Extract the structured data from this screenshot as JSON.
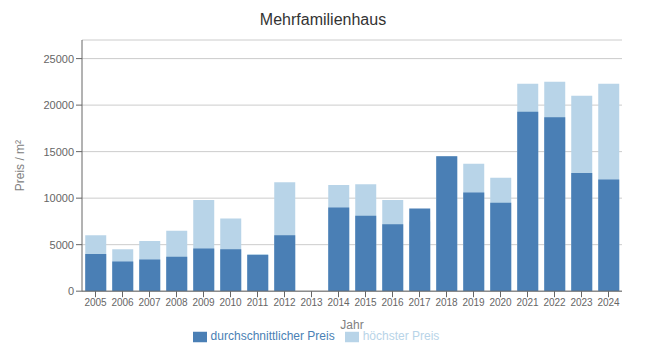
{
  "chart_data": {
    "type": "bar",
    "title": "Mehrfamilienhaus",
    "xlabel": "Jahr",
    "ylabel": "Preis / m²",
    "categories": [
      "2005",
      "2006",
      "2007",
      "2008",
      "2009",
      "2010",
      "2011",
      "2012",
      "2013",
      "2014",
      "2015",
      "2016",
      "2017",
      "2018",
      "2019",
      "2020",
      "2021",
      "2022",
      "2023",
      "2024"
    ],
    "series": [
      {
        "name": "höchster Preis",
        "color": "#b8d4e8",
        "values": [
          6000,
          4500,
          5400,
          6500,
          9800,
          7800,
          4000,
          11700,
          0,
          11400,
          11500,
          9800,
          7500,
          14500,
          13700,
          12200,
          22300,
          22500,
          21000,
          22300
        ]
      },
      {
        "name": "durchschnittlicher Preis",
        "color": "#4a7fb5",
        "values": [
          4000,
          3200,
          3400,
          3700,
          4600,
          4500,
          3900,
          6000,
          0,
          9000,
          8100,
          7200,
          8900,
          14500,
          10600,
          9500,
          19300,
          18700,
          12700,
          12000
        ]
      }
    ],
    "ylim": [
      0,
      27000
    ],
    "yticks": [
      0,
      5000,
      10000,
      15000,
      20000,
      25000
    ],
    "grid": true,
    "legend": "bottom"
  }
}
